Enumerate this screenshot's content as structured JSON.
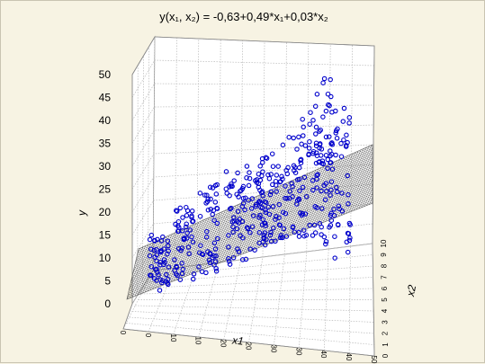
{
  "chart_data": {
    "type": "scatter",
    "title": "y(x₁, x₂) = -0,63+0,49*x₁+0,03*x₂",
    "xlabel": "x1",
    "ylabel": "y",
    "zlabel": "x2",
    "y_ticks": [
      "50",
      "45",
      "40",
      "35",
      "30",
      "25",
      "20",
      "15",
      "10",
      "5",
      "0"
    ],
    "x1_ticks": [
      "0",
      "0",
      "10",
      "10",
      "20",
      "20",
      "30",
      "30",
      "40",
      "40",
      "50"
    ],
    "x2_ticks": [
      "10",
      "9",
      "8",
      "7",
      "6",
      "5",
      "4",
      "3",
      "2",
      "1",
      "0"
    ],
    "ylim": [
      0,
      50
    ],
    "x1lim": [
      0,
      50
    ],
    "x2lim": [
      0,
      10
    ],
    "fitted_surface": {
      "intercept": -0.63,
      "b1": 0.49,
      "b2": 0.03
    },
    "point_color": "#0000cc",
    "grid": true,
    "clusters": [
      {
        "x1": 6,
        "ymin": 3,
        "ymax": 15
      },
      {
        "x1": 12,
        "ymin": 4,
        "ymax": 21
      },
      {
        "x1": 18,
        "ymin": 5,
        "ymax": 25
      },
      {
        "x1": 25,
        "ymin": 6,
        "ymax": 27
      },
      {
        "x1": 30,
        "ymin": 8,
        "ymax": 28
      },
      {
        "x1": 34,
        "ymin": 10,
        "ymax": 30
      },
      {
        "x1": 39,
        "ymin": 10,
        "ymax": 34
      },
      {
        "x1": 44,
        "ymin": 9,
        "ymax": 38
      },
      {
        "x1": 47,
        "ymin": 8,
        "ymax": 45
      },
      {
        "x1": 51,
        "ymin": 5,
        "ymax": 40
      }
    ]
  }
}
